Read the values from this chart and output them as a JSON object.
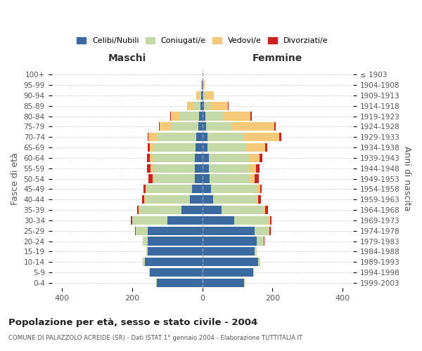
{
  "age_groups": [
    "0-4",
    "5-9",
    "10-14",
    "15-19",
    "20-24",
    "25-29",
    "30-34",
    "35-39",
    "40-44",
    "45-49",
    "50-54",
    "55-59",
    "60-64",
    "65-69",
    "70-74",
    "75-79",
    "80-84",
    "85-89",
    "90-94",
    "95-99",
    "100+"
  ],
  "birth_years": [
    "1999-2003",
    "1994-1998",
    "1989-1993",
    "1984-1988",
    "1979-1983",
    "1974-1978",
    "1969-1973",
    "1964-1968",
    "1959-1963",
    "1954-1958",
    "1949-1953",
    "1944-1948",
    "1939-1943",
    "1934-1938",
    "1929-1933",
    "1924-1928",
    "1919-1923",
    "1914-1918",
    "1909-1913",
    "1904-1908",
    "≤ 1903"
  ],
  "maschi": {
    "celibi": [
      130,
      150,
      165,
      155,
      155,
      155,
      100,
      60,
      35,
      30,
      22,
      22,
      22,
      20,
      18,
      12,
      10,
      5,
      3,
      1,
      0
    ],
    "coniugati": [
      1,
      2,
      5,
      5,
      15,
      35,
      100,
      120,
      130,
      130,
      115,
      120,
      120,
      120,
      110,
      75,
      55,
      18,
      5,
      1,
      0
    ],
    "vedovi": [
      0,
      0,
      0,
      0,
      0,
      1,
      1,
      2,
      2,
      3,
      5,
      6,
      8,
      10,
      25,
      35,
      25,
      20,
      10,
      2,
      0
    ],
    "divorziati": [
      0,
      0,
      0,
      0,
      1,
      2,
      3,
      5,
      5,
      5,
      12,
      10,
      8,
      5,
      2,
      2,
      2,
      0,
      0,
      0,
      0
    ]
  },
  "femmine": {
    "nubili": [
      120,
      145,
      160,
      150,
      155,
      150,
      90,
      55,
      30,
      25,
      20,
      18,
      18,
      15,
      15,
      10,
      8,
      5,
      2,
      0,
      0
    ],
    "coniugate": [
      1,
      2,
      5,
      5,
      20,
      40,
      100,
      120,
      125,
      130,
      115,
      115,
      115,
      110,
      105,
      75,
      50,
      18,
      5,
      1,
      0
    ],
    "vedove": [
      0,
      0,
      0,
      0,
      1,
      2,
      3,
      5,
      5,
      10,
      15,
      20,
      30,
      55,
      100,
      120,
      80,
      50,
      25,
      5,
      0
    ],
    "divorziate": [
      0,
      0,
      0,
      0,
      1,
      3,
      5,
      8,
      8,
      5,
      12,
      10,
      8,
      5,
      5,
      5,
      3,
      2,
      0,
      0,
      0
    ]
  },
  "colors": {
    "celibi": "#3a6a9f",
    "coniugati": "#c5d9a8",
    "vedovi": "#f5c97a",
    "divorziati": "#cc2222"
  },
  "title": "Popolazione per età, sesso e stato civile - 2004",
  "subtitle": "COMUNE DI PALAZZOLO ACREIDE (SR) - Dati ISTAT 1° gennaio 2004 - Elaborazione TUTTITALIA.IT",
  "xlabel_left": "Maschi",
  "xlabel_right": "Femmine",
  "ylabel_left": "Fasce di età",
  "ylabel_right": "Anni di nascita",
  "xlim": 430,
  "background_color": "#ffffff",
  "legend_labels": [
    "Celibi/Nubili",
    "Coniugati/e",
    "Vedovi/e",
    "Divorziati/e"
  ]
}
